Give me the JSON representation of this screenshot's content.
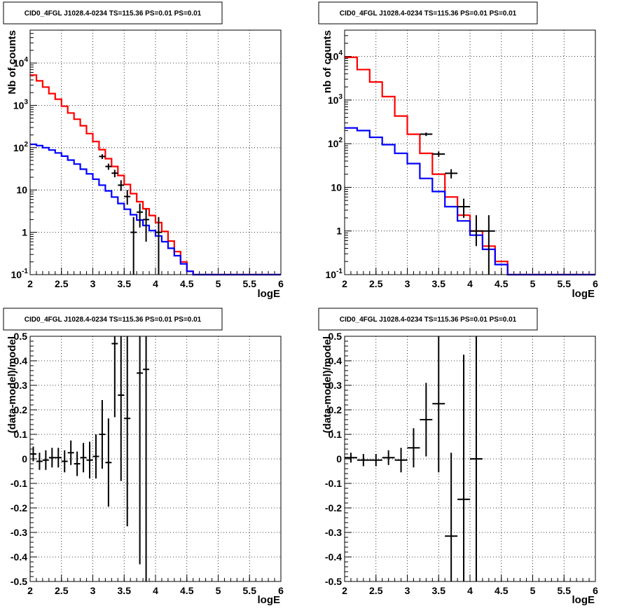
{
  "chart_data": [
    {
      "type": "line",
      "title": "CID0_4FGL J1028.4-0234 TS=115.36 PS=0.01 PS=0.01",
      "xlabel": "logE",
      "ylabel": "Nb of counts",
      "yscale": "log",
      "xlim": [
        2,
        6
      ],
      "ylim": [
        0.1,
        60000
      ],
      "grid": true,
      "x_ticks": [
        "2",
        "2.5",
        "3",
        "3.5",
        "4",
        "4.5",
        "5",
        "5.5",
        "6"
      ],
      "y_ticks": [
        {
          "value": 0.1,
          "base": "10",
          "exp": "-1"
        },
        {
          "value": 1,
          "label": "1"
        },
        {
          "value": 10,
          "label": "10"
        },
        {
          "value": 100,
          "base": "10",
          "exp": "2"
        },
        {
          "value": 1000,
          "base": "10",
          "exp": "3"
        },
        {
          "value": 10000,
          "base": "10",
          "exp": "4"
        }
      ],
      "bin_edges": [
        2.0,
        2.1,
        2.2,
        2.3,
        2.4,
        2.5,
        2.6,
        2.7,
        2.8,
        2.9,
        3.0,
        3.1,
        3.2,
        3.3,
        3.4,
        3.5,
        3.6,
        3.7,
        3.8,
        3.9,
        4.0,
        4.1,
        4.2,
        4.3,
        4.4,
        4.5,
        4.6,
        4.7,
        4.8,
        4.9,
        5.0,
        5.1,
        5.2,
        5.3,
        5.4,
        5.5,
        5.6,
        5.7,
        5.8,
        5.9,
        6.0
      ],
      "series": [
        {
          "color": "#ff0000",
          "style": "step",
          "values": [
            5200,
            3800,
            2700,
            1900,
            1400,
            950,
            660,
            470,
            330,
            215,
            140,
            90,
            55,
            36,
            22,
            13.5,
            8.2,
            5.3,
            3.6,
            2.5,
            1.7,
            1.05,
            0.62,
            0.35,
            0.2,
            0.12,
            0.1,
            0.1,
            0.1,
            0.1,
            0.1,
            0.1,
            0.1,
            0.1,
            0.1,
            0.1,
            0.1,
            0.1,
            0.1,
            0.1
          ]
        },
        {
          "color": "#0000ff",
          "style": "step",
          "values": [
            120,
            112,
            100,
            88,
            75,
            63,
            51,
            41,
            31,
            24,
            18,
            13,
            9.5,
            6.8,
            4.8,
            3.5,
            2.6,
            1.95,
            1.45,
            1.1,
            0.82,
            0.6,
            0.42,
            0.28,
            0.18,
            0.12,
            0.1,
            0.1,
            0.1,
            0.1,
            0.1,
            0.1,
            0.1,
            0.1,
            0.1,
            0.1,
            0.1,
            0.1,
            0.1,
            0.1
          ]
        },
        {
          "color": "#000000",
          "style": "errorbars",
          "x_halfwidth": 0.05,
          "points": [
            {
              "x": 3.15,
              "y": 62,
              "lo": 54,
              "hi": 70
            },
            {
              "x": 3.25,
              "y": 36,
              "lo": 30,
              "hi": 42
            },
            {
              "x": 3.35,
              "y": 25,
              "lo": 20,
              "hi": 30
            },
            {
              "x": 3.45,
              "y": 13,
              "lo": 9.5,
              "hi": 17
            },
            {
              "x": 3.55,
              "y": 7,
              "lo": 4.5,
              "hi": 10
            },
            {
              "x": 3.65,
              "y": 1,
              "lo": 0.1,
              "hi": 2.3
            },
            {
              "x": 3.75,
              "y": 3,
              "lo": 1.3,
              "hi": 4.8
            },
            {
              "x": 3.85,
              "y": 2,
              "lo": 0.6,
              "hi": 3.5
            },
            {
              "x": 4.05,
              "y": 1,
              "lo": 0.1,
              "hi": 2.3
            }
          ]
        }
      ]
    },
    {
      "type": "line",
      "title": "CID0_4FGL J1028.4-0234 TS=115.36 PS=0.01 PS=0.01",
      "xlabel": "logE",
      "ylabel": "nb of counts",
      "yscale": "log",
      "xlim": [
        2,
        6
      ],
      "ylim": [
        0.1,
        40000
      ],
      "grid": true,
      "x_ticks": [
        "2",
        "2.5",
        "3",
        "3.5",
        "4",
        "4.5",
        "5",
        "5.5",
        "6"
      ],
      "y_ticks": [
        {
          "value": 0.1,
          "base": "10",
          "exp": "-1"
        },
        {
          "value": 1,
          "label": "1"
        },
        {
          "value": 10,
          "label": "10"
        },
        {
          "value": 100,
          "base": "10",
          "exp": "2"
        },
        {
          "value": 1000,
          "base": "10",
          "exp": "3"
        },
        {
          "value": 10000,
          "base": "10",
          "exp": "4"
        }
      ],
      "bin_edges": [
        2.0,
        2.2,
        2.4,
        2.6,
        2.8,
        3.0,
        3.2,
        3.4,
        3.6,
        3.8,
        4.0,
        4.2,
        4.4,
        4.6,
        4.8,
        5.0,
        5.2,
        5.4,
        5.6,
        5.8,
        6.0
      ],
      "series": [
        {
          "color": "#ff0000",
          "style": "step",
          "values": [
            9500,
            5000,
            2600,
            1200,
            430,
            165,
            60,
            20,
            6,
            2.3,
            1.0,
            0.45,
            0.2,
            0.1,
            0.1,
            0.1,
            0.1,
            0.1,
            0.1,
            0.1
          ]
        },
        {
          "color": "#0000ff",
          "style": "step",
          "values": [
            230,
            200,
            140,
            95,
            60,
            35,
            16,
            8,
            3.6,
            1.7,
            0.8,
            0.38,
            0.17,
            0.1,
            0.1,
            0.1,
            0.1,
            0.1,
            0.1,
            0.1
          ]
        },
        {
          "color": "#000000",
          "style": "errorbars",
          "x_halfwidth": 0.1,
          "points": [
            {
              "x": 3.3,
              "y": 165,
              "lo": 150,
              "hi": 180
            },
            {
              "x": 3.5,
              "y": 58,
              "lo": 50,
              "hi": 66
            },
            {
              "x": 3.7,
              "y": 21,
              "lo": 16,
              "hi": 26
            },
            {
              "x": 3.9,
              "y": 3.6,
              "lo": 2,
              "hi": 5.5
            },
            {
              "x": 4.1,
              "y": 1,
              "lo": 0.45,
              "hi": 2.3
            },
            {
              "x": 4.3,
              "y": 1,
              "lo": 0.1,
              "hi": 2.3
            }
          ]
        }
      ]
    },
    {
      "type": "scatter",
      "title": "CID0_4FGL J1028.4-0234 TS=115.36 PS=0.01 PS=0.01",
      "xlabel": "logE",
      "ylabel": "(data-model)/model",
      "xlim": [
        2,
        6
      ],
      "ylim": [
        -0.5,
        0.5
      ],
      "grid": true,
      "x_ticks": [
        "2",
        "2.5",
        "3",
        "3.5",
        "4",
        "4.5",
        "5",
        "5.5",
        "6"
      ],
      "y_ticks": [
        "-0.5",
        "-0.4",
        "-0.3",
        "-0.2",
        "-0.1",
        "0",
        "0.1",
        "0.2",
        "0.3",
        "0.4",
        "0.5"
      ],
      "series": [
        {
          "color": "#000000",
          "style": "errorbars",
          "x_halfwidth": 0.05,
          "points": [
            {
              "x": 2.05,
              "y": 0.02,
              "err": 0.03
            },
            {
              "x": 2.15,
              "y": -0.01,
              "err": 0.035
            },
            {
              "x": 2.25,
              "y": -0.005,
              "err": 0.04
            },
            {
              "x": 2.35,
              "y": 0.005,
              "err": 0.04
            },
            {
              "x": 2.45,
              "y": 0.005,
              "err": 0.04
            },
            {
              "x": 2.55,
              "y": -0.01,
              "err": 0.045
            },
            {
              "x": 2.65,
              "y": 0.025,
              "err": 0.05
            },
            {
              "x": 2.75,
              "y": -0.02,
              "err": 0.05
            },
            {
              "x": 2.85,
              "y": 0.005,
              "err": 0.06
            },
            {
              "x": 2.95,
              "y": -0.005,
              "err": 0.075
            },
            {
              "x": 3.05,
              "y": 0.01,
              "err": 0.09
            },
            {
              "x": 3.15,
              "y": 0.1,
              "err": 0.14
            },
            {
              "x": 3.25,
              "y": -0.015,
              "err": 0.18
            },
            {
              "x": 3.35,
              "y": 0.47,
              "err": 0.3
            },
            {
              "x": 3.45,
              "y": 0.26,
              "err": 0.35
            },
            {
              "x": 3.55,
              "y": 0.165,
              "err": 0.44
            },
            {
              "x": 3.75,
              "y": 0.35,
              "err": 0.78
            },
            {
              "x": 3.85,
              "y": 0.365,
              "err": 0.95
            }
          ]
        }
      ]
    },
    {
      "type": "scatter",
      "title": "CID0_4FGL J1028.4-0234 TS=115.36 PS=0.01 PS=0.01",
      "xlabel": "logE",
      "ylabel": "(data-model)/model",
      "xlim": [
        2,
        6
      ],
      "ylim": [
        -0.5,
        0.5
      ],
      "grid": true,
      "x_ticks": [
        "2",
        "2.5",
        "3",
        "3.5",
        "4",
        "4.5",
        "5",
        "5.5",
        "6"
      ],
      "y_ticks": [
        "-0.5",
        "-0.4",
        "-0.3",
        "-0.2",
        "-0.1",
        "0",
        "0.1",
        "0.2",
        "0.3",
        "0.4",
        "0.5"
      ],
      "series": [
        {
          "color": "#000000",
          "style": "errorbars",
          "x_halfwidth": 0.1,
          "points": [
            {
              "x": 2.1,
              "y": 0.005,
              "err": 0.02
            },
            {
              "x": 2.3,
              "y": -0.005,
              "err": 0.025
            },
            {
              "x": 2.5,
              "y": -0.005,
              "err": 0.025
            },
            {
              "x": 2.7,
              "y": 0.005,
              "err": 0.03
            },
            {
              "x": 2.9,
              "y": -0.005,
              "err": 0.05
            },
            {
              "x": 3.1,
              "y": 0.045,
              "err": 0.08
            },
            {
              "x": 3.3,
              "y": 0.16,
              "err": 0.15
            },
            {
              "x": 3.5,
              "y": 0.225,
              "err": 0.28
            },
            {
              "x": 3.7,
              "y": -0.315,
              "err": 0.34
            },
            {
              "x": 3.9,
              "y": -0.165,
              "err": 0.59
            },
            {
              "x": 4.1,
              "y": 0.0,
              "err": 1.0
            }
          ]
        }
      ]
    }
  ]
}
